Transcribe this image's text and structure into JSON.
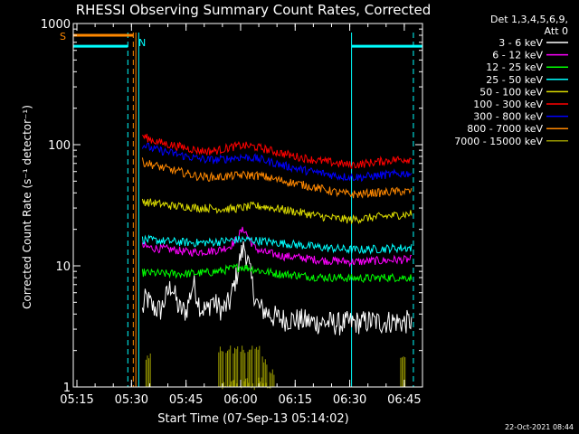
{
  "chart_data": {
    "type": "line",
    "title": "RHESSI Observing Summary Count Rates, Corrected",
    "xlabel": "Start Time (07-Sep-13 05:14:02)",
    "ylabel": "Corrected Count Rate (s⁻¹ detector⁻¹)",
    "yscale": "log",
    "ylim": [
      1,
      1000
    ],
    "xlim_minutes": [
      0,
      96
    ],
    "x_ticks": [
      {
        "label": "05:15",
        "min": 1
      },
      {
        "label": "05:30",
        "min": 16
      },
      {
        "label": "05:45",
        "min": 31
      },
      {
        "label": "06:00",
        "min": 46
      },
      {
        "label": "06:15",
        "min": 61
      },
      {
        "label": "06:30",
        "min": 76
      },
      {
        "label": "06:45",
        "min": 91
      }
    ],
    "y_ticks": [
      {
        "label": "1",
        "value": 1
      },
      {
        "label": "10",
        "value": 10
      },
      {
        "label": "100",
        "value": 100
      },
      {
        "label": "1000",
        "value": 1000
      }
    ],
    "legend_header": [
      "Det 1,3,4,5,6,9,",
      "Att 0"
    ],
    "legend_position": "right",
    "series": [
      {
        "name": "3 - 6 keV",
        "color": "#ffffff",
        "x": [
          19,
          20,
          22,
          24,
          27,
          29,
          31,
          33,
          35,
          37,
          38,
          39,
          41,
          43,
          45,
          46,
          47,
          48,
          49,
          50,
          51,
          53,
          55,
          58,
          61,
          64,
          67,
          70,
          73,
          76,
          79,
          82,
          85,
          88,
          91,
          93
        ],
        "y": [
          4.2,
          5.5,
          4.5,
          4.3,
          7.0,
          4.4,
          4.2,
          7.2,
          4.5,
          4.3,
          5.4,
          4.8,
          4.3,
          5.0,
          8.5,
          12,
          14.5,
          11,
          7.5,
          5.5,
          4.5,
          4.2,
          3.8,
          3.6,
          3.6,
          3.5,
          3.4,
          3.4,
          3.3,
          3.4,
          3.4,
          3.5,
          3.4,
          3.5,
          3.4,
          3.5
        ]
      },
      {
        "name": "6 - 12 keV",
        "color": "#ff00ff",
        "x": [
          19,
          22,
          25,
          28,
          31,
          34,
          37,
          40,
          43,
          45,
          46,
          47,
          48,
          49,
          50,
          52,
          55,
          58,
          61,
          64,
          67,
          70,
          73,
          76,
          79,
          82,
          85,
          88,
          91,
          93
        ],
        "y": [
          14.5,
          14,
          13.8,
          13.5,
          13,
          13,
          13.2,
          13.5,
          14.5,
          16.5,
          19,
          20,
          17.5,
          15.5,
          14,
          13,
          12.5,
          12,
          11.8,
          11.5,
          11.2,
          11,
          11,
          10.8,
          10.8,
          11,
          11,
          11.2,
          11.2,
          11.3
        ]
      },
      {
        "name": "12 - 25 keV",
        "color": "#00ff00",
        "x": [
          19,
          22,
          25,
          28,
          31,
          34,
          37,
          40,
          43,
          46,
          49,
          52,
          55,
          58,
          61,
          64,
          67,
          70,
          73,
          76,
          79,
          82,
          85,
          88,
          91,
          93
        ],
        "y": [
          8.8,
          8.7,
          8.6,
          8.6,
          8.6,
          8.7,
          8.8,
          9.0,
          9.4,
          9.8,
          9.5,
          9.0,
          8.7,
          8.5,
          8.4,
          8.2,
          8.1,
          8.0,
          8.0,
          7.9,
          7.9,
          7.9,
          8.0,
          8.0,
          8.0,
          8.0
        ]
      },
      {
        "name": "25 - 50 keV",
        "color": "#00ffff",
        "x": [
          19,
          22,
          25,
          28,
          31,
          34,
          37,
          40,
          43,
          46,
          49,
          52,
          55,
          58,
          61,
          64,
          67,
          70,
          73,
          76,
          79,
          82,
          85,
          88,
          91,
          93
        ],
        "y": [
          16.5,
          16.2,
          16,
          15.8,
          15.6,
          15.5,
          15.6,
          15.8,
          16.2,
          16.5,
          16.3,
          16,
          15.6,
          15.3,
          15,
          14.6,
          14.3,
          14,
          13.8,
          13.6,
          13.6,
          13.7,
          13.8,
          14,
          14,
          14.1
        ]
      },
      {
        "name": "50 - 100 keV",
        "color": "#dddd00",
        "x": [
          19,
          22,
          25,
          28,
          31,
          34,
          37,
          40,
          43,
          46,
          49,
          52,
          55,
          58,
          61,
          64,
          67,
          70,
          73,
          76,
          79,
          82,
          85,
          88,
          91,
          93
        ],
        "y": [
          34,
          33,
          32,
          31,
          31,
          30,
          30,
          29.5,
          29.5,
          30,
          31,
          31,
          30,
          29,
          28,
          27,
          26,
          25,
          24.5,
          24,
          24.5,
          25,
          25.5,
          26,
          26.5,
          27
        ]
      },
      {
        "name": "100 - 300 keV",
        "color": "#ff0000",
        "x": [
          19,
          22,
          25,
          28,
          31,
          34,
          37,
          40,
          43,
          46,
          49,
          52,
          55,
          58,
          61,
          64,
          67,
          70,
          73,
          76,
          79,
          82,
          85,
          88,
          91,
          93
        ],
        "y": [
          118,
          108,
          102,
          98,
          94,
          90,
          88,
          90,
          95,
          98,
          97,
          93,
          88,
          84,
          80,
          77,
          74,
          72,
          70,
          68,
          69,
          71,
          73,
          75,
          76,
          76
        ]
      },
      {
        "name": "300 - 800 keV",
        "color": "#0000ff",
        "x": [
          19,
          22,
          25,
          28,
          31,
          34,
          37,
          40,
          43,
          46,
          49,
          52,
          55,
          58,
          61,
          64,
          67,
          70,
          73,
          76,
          79,
          82,
          85,
          88,
          91,
          93
        ],
        "y": [
          100,
          92,
          88,
          84,
          80,
          77,
          75,
          75,
          77,
          79,
          78,
          75,
          71,
          67,
          64,
          61,
          59,
          57,
          55,
          54,
          54,
          55,
          56,
          57,
          58,
          58
        ]
      },
      {
        "name": "800 - 7000 keV",
        "color": "#ff8800",
        "x": [
          19,
          22,
          25,
          28,
          31,
          34,
          37,
          40,
          43,
          46,
          49,
          52,
          55,
          58,
          61,
          64,
          67,
          70,
          73,
          76,
          79,
          82,
          85,
          88,
          91,
          93
        ],
        "y": [
          72,
          68,
          64,
          61,
          58,
          55,
          54,
          54,
          55,
          56,
          56,
          55,
          52,
          50,
          48,
          46,
          44,
          42,
          40,
          39,
          39,
          40,
          40,
          41,
          41,
          41
        ]
      },
      {
        "name": "7000 - 15000 keV",
        "color": "#999900",
        "x": [
          19,
          20,
          21,
          39,
          40,
          41,
          42,
          43,
          44,
          45,
          46,
          47,
          48,
          49,
          50,
          51,
          52,
          53,
          54,
          90
        ],
        "y": [
          1,
          1.9,
          1,
          1,
          2.2,
          1.1,
          2.2,
          1.2,
          2.2,
          1.1,
          2.2,
          1.2,
          2.2,
          1.1,
          2.2,
          1.2,
          1.8,
          1.1,
          1.4,
          1.8
        ]
      }
    ],
    "annotations": [
      {
        "label": "S",
        "color": "#ff8800"
      },
      {
        "label": "N",
        "color": "#00ffff"
      }
    ],
    "state_bars": [
      {
        "name": "saa",
        "color": "#ff8800",
        "x_start": 0,
        "x_end": 16.5,
        "value": 800
      },
      {
        "name": "night",
        "color": "#00ffff",
        "x_start": 0,
        "x_end": 15,
        "value": 650
      },
      {
        "name": "night",
        "color": "#00ffff",
        "x_start": 76.5,
        "x_end": 96,
        "value": 650
      }
    ],
    "vertical_markers": [
      {
        "color": "#00ff00",
        "min": 0,
        "style": "solid"
      },
      {
        "color": "#00ffff",
        "min": 15,
        "style": "dashed"
      },
      {
        "color": "#ff8800",
        "min": 16.5,
        "style": "dashed"
      },
      {
        "color": "#ff8800",
        "min": 17.2,
        "style": "solid"
      },
      {
        "color": "#00ffff",
        "min": 18,
        "style": "solid"
      },
      {
        "color": "#00ffff",
        "min": 76.5,
        "style": "solid"
      },
      {
        "color": "#00ffff",
        "min": 93.5,
        "style": "dashed"
      }
    ]
  },
  "footer_date": "22-Oct-2021 08:44"
}
